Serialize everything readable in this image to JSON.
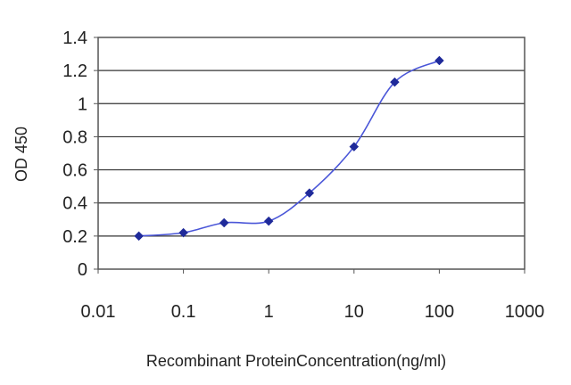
{
  "chart_data": {
    "type": "scatter",
    "title": "",
    "xlabel": "Recombinant ProteinConcentration(ng/ml)",
    "ylabel": "OD 450",
    "x_scale": "log",
    "xlim": [
      0.01,
      1000
    ],
    "ylim": [
      0,
      1.4
    ],
    "x_ticks": [
      "0.01",
      "0.1",
      "1",
      "10",
      "100",
      "1000"
    ],
    "y_ticks": [
      "0",
      "0.2",
      "0.4",
      "0.6",
      "0.8",
      "1",
      "1.2",
      "1.4"
    ],
    "grid": "horizontal",
    "legend": "none",
    "series": [
      {
        "x": [
          0.03,
          0.1,
          0.3,
          1,
          3,
          10,
          30,
          100
        ],
        "y": [
          0.2,
          0.22,
          0.28,
          0.29,
          0.46,
          0.74,
          1.13,
          1.26
        ],
        "line_style": "smoothed",
        "marker": "diamond",
        "color": "#1f2a9a"
      }
    ]
  }
}
